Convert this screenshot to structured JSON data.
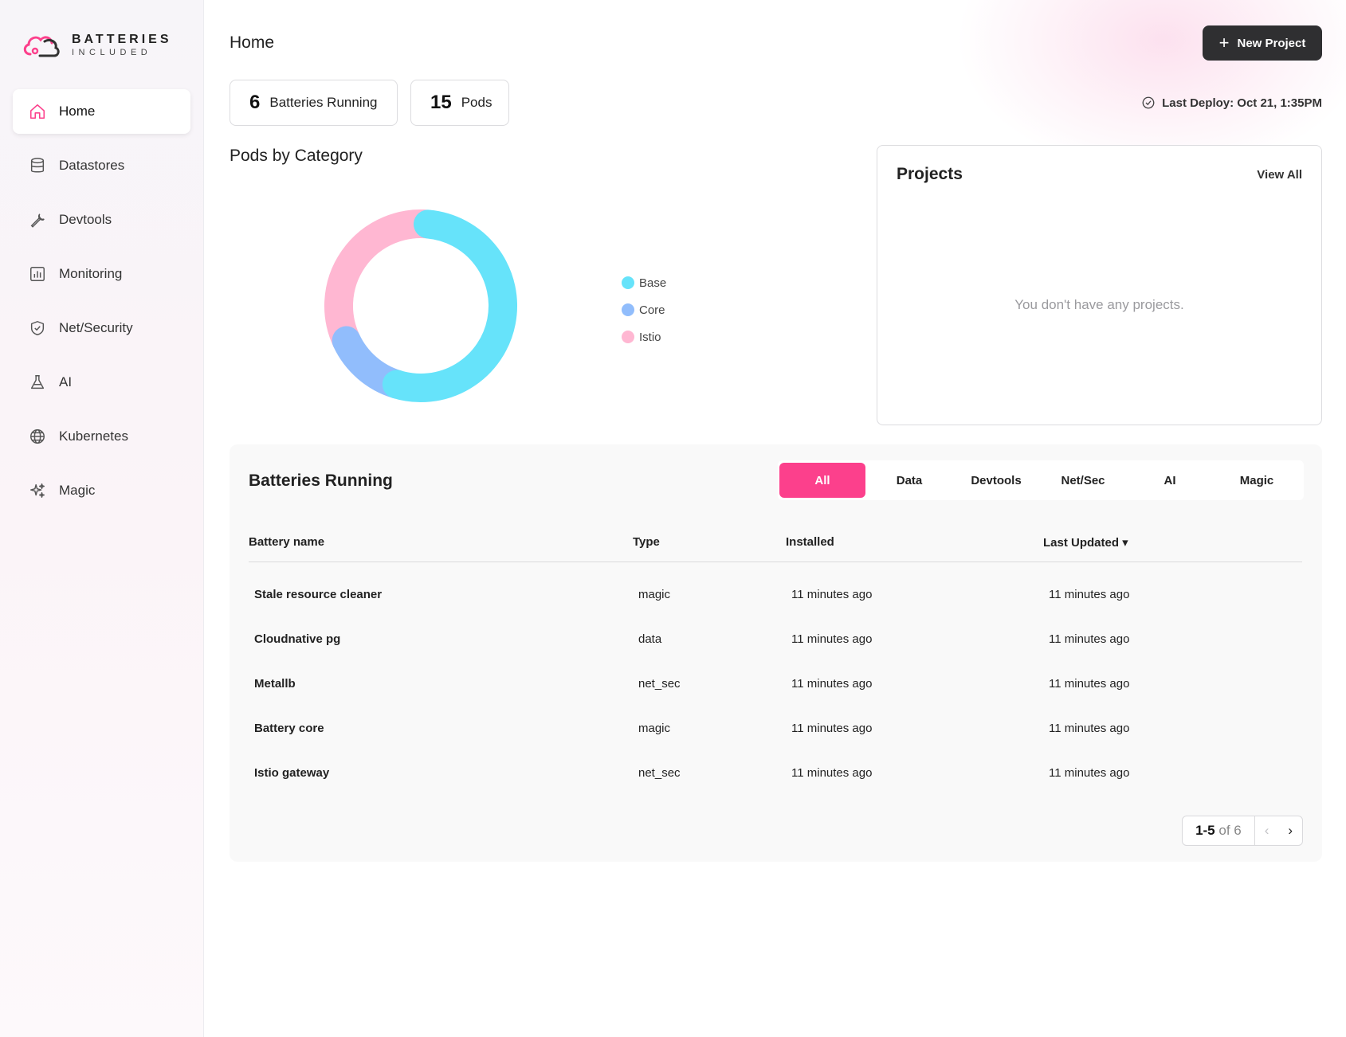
{
  "brand": {
    "line1": "BATTERIES",
    "line2": "INCLUDED",
    "accent": "#fc408c"
  },
  "sidebar": {
    "items": [
      {
        "label": "Home",
        "icon": "home-icon",
        "active": true
      },
      {
        "label": "Datastores",
        "icon": "database-icon"
      },
      {
        "label": "Devtools",
        "icon": "wrench-icon"
      },
      {
        "label": "Monitoring",
        "icon": "chart-icon"
      },
      {
        "label": "Net/Security",
        "icon": "shield-icon"
      },
      {
        "label": "AI",
        "icon": "flask-icon"
      },
      {
        "label": "Kubernetes",
        "icon": "globe-icon"
      },
      {
        "label": "Magic",
        "icon": "sparkles-icon"
      }
    ]
  },
  "header": {
    "title": "Home",
    "new_project_label": "New Project"
  },
  "stats": {
    "batteries_count": "6",
    "batteries_label": "Batteries Running",
    "pods_count": "15",
    "pods_label": "Pods"
  },
  "last_deploy": "Last Deploy: Oct 21, 1:35PM",
  "pods_chart": {
    "title": "Pods by Category",
    "chart_data": {
      "type": "pie",
      "categories": [
        "Base",
        "Core",
        "Istio"
      ],
      "values": [
        8,
        2,
        5
      ],
      "colors": [
        "#66e3fa",
        "#91bdfc",
        "#ffb7d2"
      ]
    }
  },
  "projects": {
    "title": "Projects",
    "view_all_label": "View All",
    "empty_text": "You don't have any projects."
  },
  "batteries_running": {
    "title": "Batteries Running",
    "filters": [
      "All",
      "Data",
      "Devtools",
      "Net/Sec",
      "AI",
      "Magic"
    ],
    "columns": [
      "Battery name",
      "Type",
      "Installed",
      "Last Updated ▾"
    ],
    "rows": [
      {
        "name": "Stale resource cleaner",
        "type": "magic",
        "installed": "11 minutes ago",
        "updated": "11 minutes ago"
      },
      {
        "name": "Cloudnative pg",
        "type": "data",
        "installed": "11 minutes ago",
        "updated": "11 minutes ago"
      },
      {
        "name": "Metallb",
        "type": "net_sec",
        "installed": "11 minutes ago",
        "updated": "11 minutes ago"
      },
      {
        "name": "Battery core",
        "type": "magic",
        "installed": "11 minutes ago",
        "updated": "11 minutes ago"
      },
      {
        "name": "Istio gateway",
        "type": "net_sec",
        "installed": "11 minutes ago",
        "updated": "11 minutes ago"
      }
    ],
    "pager": {
      "range": "1-5",
      "of": "of 6"
    }
  }
}
